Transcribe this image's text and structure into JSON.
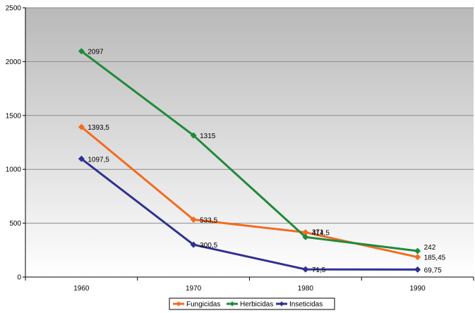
{
  "chart_data": {
    "type": "line",
    "title": "",
    "xlabel": "",
    "ylabel": "",
    "categories": [
      "1960",
      "1970",
      "1980",
      "1990"
    ],
    "ylim": [
      0,
      2500
    ],
    "yticks": [
      "0",
      "500",
      "1000",
      "1500",
      "2000",
      "2500"
    ],
    "grid": true,
    "legend_position": "bottom-right",
    "series": [
      {
        "name": "Fungicidas",
        "color": "#f26b21",
        "values": [
          1393.5,
          533.5,
          414.5,
          185.45
        ],
        "labels": [
          "1393,5",
          "533,5",
          "414,5",
          "185,45"
        ]
      },
      {
        "name": "Herbicidas",
        "color": "#1f8a3a",
        "values": [
          2097,
          1315,
          371,
          242
        ],
        "labels": [
          "2097",
          "1315",
          "371",
          "242"
        ]
      },
      {
        "name": "Inseticidas",
        "color": "#2e3192",
        "values": [
          1097.5,
          300.5,
          71.5,
          69.75
        ],
        "labels": [
          "1097,5",
          "300,5",
          "71,5",
          "69,75"
        ]
      }
    ]
  }
}
